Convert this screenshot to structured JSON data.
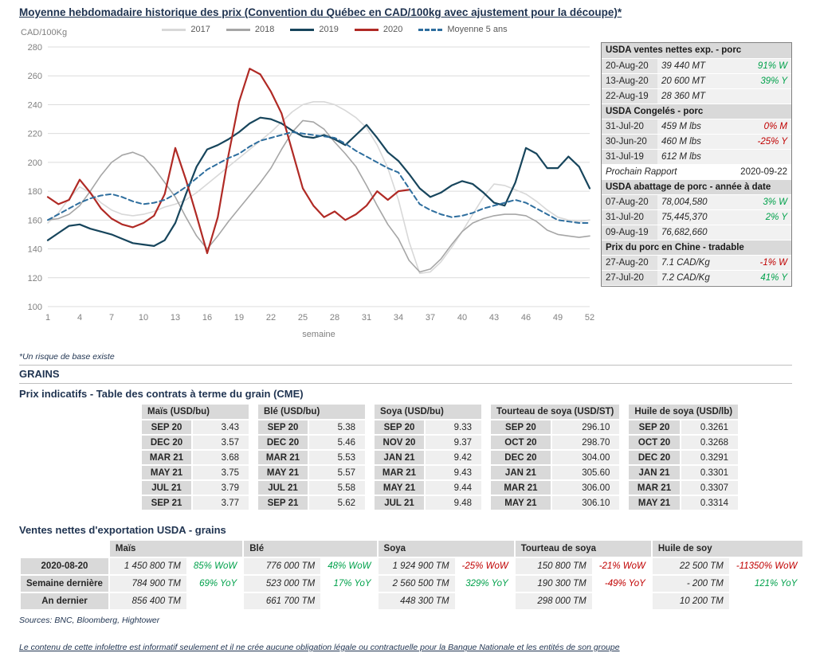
{
  "page": {
    "title": "Moyenne hebdomadaire historique des prix (Convention du Québec en CAD/100kg avec ajustement pour la découpe)*",
    "note": "*Un risque de base existe",
    "grains_heading": "GRAINS",
    "contracts_heading": "Prix indicatifs - Table des contrats à terme du grain (CME)",
    "exports_heading": "Ventes nettes d'exportation USDA - grains",
    "sources": "Sources: BNC, Bloomberg, Hightower",
    "footer": "Le contenu de cette infolettre est informatif seulement et il ne crée aucune obligation légale ou contractuelle pour la Banque Nationale et les entités de son groupe"
  },
  "chart_data": {
    "type": "line",
    "title": "Moyenne hebdomadaire historique des prix (Convention du Québec en CAD/100kg avec ajustement pour la découpe)",
    "ylabel": "CAD/100Kg",
    "xlabel": "semaine",
    "ylim": [
      100,
      280
    ],
    "y_ticks": [
      100,
      120,
      140,
      160,
      180,
      200,
      220,
      240,
      260,
      280
    ],
    "x_ticks": [
      1,
      4,
      7,
      10,
      13,
      16,
      19,
      22,
      25,
      28,
      31,
      34,
      37,
      40,
      43,
      46,
      49,
      52
    ],
    "x_range": [
      1,
      52
    ],
    "grid": true,
    "legend_position": "top",
    "series": [
      {
        "name": "2017",
        "color": "#D8D8D8",
        "width": 1.6,
        "dash": null,
        "values": [
          158,
          165,
          175,
          183,
          179,
          172,
          167,
          164,
          163,
          164,
          166,
          169,
          171,
          174,
          179,
          185,
          191,
          197,
          203,
          209,
          215,
          221,
          228,
          235,
          240,
          242,
          242,
          240,
          236,
          231,
          224,
          212,
          196,
          174,
          145,
          123,
          124,
          131,
          141,
          152,
          164,
          176,
          185,
          184,
          181,
          178,
          173,
          167,
          162,
          160,
          159,
          160
        ]
      },
      {
        "name": "2018",
        "color": "#A6A6A6",
        "width": 1.6,
        "dash": null,
        "values": [
          160,
          161,
          164,
          170,
          180,
          191,
          200,
          205,
          207,
          204,
          196,
          186,
          176,
          162,
          149,
          140,
          149,
          159,
          168,
          177,
          186,
          196,
          209,
          221,
          229,
          228,
          223,
          214,
          206,
          197,
          184,
          170,
          157,
          147,
          132,
          124,
          126,
          133,
          143,
          152,
          158,
          161,
          163,
          164,
          164,
          163,
          159,
          153,
          150,
          149,
          148,
          149
        ]
      },
      {
        "name": "2019",
        "color": "#17455C",
        "width": 2.2,
        "dash": null,
        "values": [
          146,
          151,
          156,
          157,
          154,
          152,
          150,
          147,
          144,
          143,
          142,
          146,
          158,
          178,
          197,
          209,
          212,
          216,
          221,
          227,
          231,
          230,
          227,
          222,
          218,
          217,
          219,
          216,
          212,
          219,
          226,
          217,
          207,
          201,
          192,
          182,
          176,
          179,
          184,
          187,
          185,
          179,
          172,
          170,
          186,
          210,
          206,
          196,
          196,
          204,
          197,
          182
        ]
      },
      {
        "name": "2020",
        "color": "#B02A25",
        "width": 2.2,
        "dash": null,
        "values": [
          176,
          171,
          174,
          188,
          179,
          168,
          161,
          157,
          155,
          158,
          163,
          178,
          210,
          188,
          163,
          137,
          162,
          205,
          242,
          265,
          261,
          249,
          234,
          208,
          182,
          170,
          162,
          166,
          160,
          164,
          170,
          180,
          174,
          180,
          181
        ]
      },
      {
        "name": "Moyenne 5 ans",
        "color": "#2E6E9E",
        "width": 2,
        "dash": "6,4",
        "values": [
          160,
          164,
          168,
          172,
          175,
          177,
          178,
          176,
          173,
          171,
          172,
          174,
          178,
          183,
          189,
          195,
          199,
          203,
          206,
          211,
          215,
          217,
          219,
          221,
          220,
          219,
          218,
          217,
          213,
          208,
          204,
          200,
          196,
          193,
          182,
          171,
          167,
          164,
          162,
          163,
          165,
          168,
          170,
          172,
          174,
          172,
          168,
          164,
          160,
          159,
          158,
          158
        ]
      }
    ]
  },
  "stats_table": {
    "blocks": [
      {
        "header": "USDA ventes nettes exp. - porc",
        "rows": [
          {
            "label": "20-Aug-20",
            "value": "39 440  MT",
            "pct": "91% W",
            "c": "pos"
          },
          {
            "label": "13-Aug-20",
            "value": "20 600  MT",
            "pct": "39% Y",
            "c": "pos"
          },
          {
            "label": "22-Aug-19",
            "value": "28 360  MT",
            "pct": "",
            "c": ""
          }
        ]
      },
      {
        "header": "USDA Congelés - porc",
        "rows": [
          {
            "label": "31-Jul-20",
            "value": "459 M lbs",
            "pct": "0% M",
            "c": "neg"
          },
          {
            "label": "30-Jun-20",
            "value": "460 M lbs",
            "pct": "-25% Y",
            "c": "neg"
          },
          {
            "label": "31-Jul-19",
            "value": "612 M lbs",
            "pct": "",
            "c": ""
          }
        ]
      },
      {
        "header": null,
        "rows": [
          {
            "style": "report",
            "label": "Prochain Rapport",
            "value": "2020-09-22",
            "pct": "",
            "c": ""
          }
        ]
      },
      {
        "header": "USDA abattage de porc - année à date",
        "rows": [
          {
            "label": "07-Aug-20",
            "value": "78,004,580",
            "pct": "3% W",
            "c": "pos"
          },
          {
            "label": "31-Jul-20",
            "value": "75,445,370",
            "pct": "2% Y",
            "c": "pos"
          },
          {
            "label": "09-Aug-19",
            "value": "76,682,660",
            "pct": "",
            "c": ""
          }
        ]
      },
      {
        "header": "Prix du porc en Chine - tradable",
        "rows": [
          {
            "label": "27-Aug-20",
            "value": "7.1 CAD/Kg",
            "pct": "-1% W",
            "c": "neg"
          },
          {
            "label": "27-Jul-20",
            "value": "7.2 CAD/Kg",
            "pct": "41% Y",
            "c": "pos"
          }
        ]
      }
    ]
  },
  "contracts": {
    "tables": [
      {
        "title": "Maïs (USD/bu)",
        "rows": [
          [
            "SEP 20",
            "3.43"
          ],
          [
            "DEC 20",
            "3.57"
          ],
          [
            "MAR 21",
            "3.68"
          ],
          [
            "MAY 21",
            "3.75"
          ],
          [
            "JUL 21",
            "3.79"
          ],
          [
            "SEP 21",
            "3.77"
          ]
        ]
      },
      {
        "title": "Blé (USD/bu)",
        "rows": [
          [
            "SEP 20",
            "5.38"
          ],
          [
            "DEC 20",
            "5.46"
          ],
          [
            "MAR 21",
            "5.53"
          ],
          [
            "MAY 21",
            "5.57"
          ],
          [
            "JUL 21",
            "5.58"
          ],
          [
            "SEP 21",
            "5.62"
          ]
        ]
      },
      {
        "title": "Soya (USD/bu)",
        "rows": [
          [
            "SEP 20",
            "9.33"
          ],
          [
            "NOV 20",
            "9.37"
          ],
          [
            "JAN 21",
            "9.42"
          ],
          [
            "MAR 21",
            "9.43"
          ],
          [
            "MAY 21",
            "9.44"
          ],
          [
            "JUL 21",
            "9.48"
          ]
        ]
      },
      {
        "title": "Tourteau de soya (USD/ST)",
        "rows": [
          [
            "SEP 20",
            "296.10"
          ],
          [
            "OCT 20",
            "298.70"
          ],
          [
            "DEC 20",
            "304.00"
          ],
          [
            "JAN 21",
            "305.60"
          ],
          [
            "MAR 21",
            "306.00"
          ],
          [
            "MAY 21",
            "306.10"
          ]
        ]
      },
      {
        "title": "Huile de soya (USD/lb)",
        "rows": [
          [
            "SEP 20",
            "0.3261"
          ],
          [
            "OCT 20",
            "0.3268"
          ],
          [
            "DEC 20",
            "0.3291"
          ],
          [
            "JAN 21",
            "0.3301"
          ],
          [
            "MAR 21",
            "0.3307"
          ],
          [
            "MAY 21",
            "0.3314"
          ]
        ]
      }
    ]
  },
  "exports": {
    "col_headers": [
      "Maïs",
      "Blé",
      "Soya",
      "Tourteau de soya",
      "Huile de soy"
    ],
    "rows": [
      {
        "label": "2020-08-20",
        "cells": [
          {
            "v": "1 450 800 TM",
            "p": "85% WoW",
            "c": "pos"
          },
          {
            "v": "776 000 TM",
            "p": "48% WoW",
            "c": "pos"
          },
          {
            "v": "1 924 900 TM",
            "p": "-25% WoW",
            "c": "neg"
          },
          {
            "v": "150 800 TM",
            "p": "-21% WoW",
            "c": "neg"
          },
          {
            "v": "22 500 TM",
            "p": "-11350% WoW",
            "c": "neg"
          }
        ]
      },
      {
        "label": "Semaine dernière",
        "cells": [
          {
            "v": "784 900 TM",
            "p": "69% YoY",
            "c": "pos"
          },
          {
            "v": "523 000 TM",
            "p": "17% YoY",
            "c": "pos"
          },
          {
            "v": "2 560 500 TM",
            "p": "329% YoY",
            "c": "pos"
          },
          {
            "v": "190 300 TM",
            "p": "-49% YoY",
            "c": "neg"
          },
          {
            "v": "-  200 TM",
            "p": "121% YoY",
            "c": "pos"
          }
        ]
      },
      {
        "label": "An dernier",
        "cells": [
          {
            "v": "856 400 TM",
            "p": "",
            "c": ""
          },
          {
            "v": "661 700 TM",
            "p": "",
            "c": ""
          },
          {
            "v": "448 300 TM",
            "p": "",
            "c": ""
          },
          {
            "v": "298 000 TM",
            "p": "",
            "c": ""
          },
          {
            "v": "10 200 TM",
            "p": "",
            "c": ""
          }
        ]
      }
    ]
  }
}
